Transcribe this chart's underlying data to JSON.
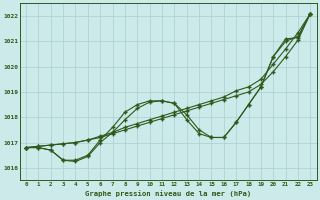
{
  "title": "Graphe pression niveau de la mer (hPa)",
  "bg_color": "#cceaea",
  "grid_color": "#aacece",
  "line_color": "#2d5a1b",
  "x_labels": [
    "0",
    "1",
    "2",
    "3",
    "4",
    "5",
    "6",
    "7",
    "8",
    "9",
    "10",
    "11",
    "12",
    "13",
    "14",
    "15",
    "16",
    "17",
    "18",
    "19",
    "20",
    "21",
    "22",
    "23"
  ],
  "ylim": [
    1015.5,
    1022.5
  ],
  "yticks": [
    1016,
    1017,
    1018,
    1019,
    1020,
    1021,
    1022
  ],
  "series_wavy": [
    1016.8,
    1016.8,
    1016.7,
    1016.3,
    1016.3,
    1016.5,
    1017.1,
    1017.6,
    1018.2,
    1018.5,
    1018.65,
    1018.65,
    1018.55,
    1018.1,
    1017.5,
    1017.2,
    1017.2,
    1017.8,
    1018.5,
    1019.2,
    1020.4,
    1021.1,
    1021.15,
    1022.1
  ],
  "series_wavy2": [
    1016.8,
    1016.8,
    1016.7,
    1016.3,
    1016.25,
    1016.45,
    1017.0,
    1017.4,
    1017.9,
    1018.35,
    1018.6,
    1018.65,
    1018.55,
    1017.9,
    1017.35,
    1017.2,
    1017.2,
    1017.8,
    1018.5,
    1019.2,
    1020.4,
    1021.0,
    1021.2,
    1022.1
  ],
  "series_linear1": [
    1016.8,
    1016.85,
    1016.9,
    1016.95,
    1017.0,
    1017.1,
    1017.2,
    1017.35,
    1017.5,
    1017.65,
    1017.8,
    1017.95,
    1018.1,
    1018.25,
    1018.4,
    1018.55,
    1018.7,
    1018.85,
    1019.0,
    1019.3,
    1019.8,
    1020.4,
    1021.05,
    1022.1
  ],
  "series_linear2": [
    1016.8,
    1016.85,
    1016.9,
    1016.95,
    1017.0,
    1017.1,
    1017.25,
    1017.4,
    1017.6,
    1017.75,
    1017.9,
    1018.05,
    1018.2,
    1018.35,
    1018.5,
    1018.65,
    1018.8,
    1019.05,
    1019.2,
    1019.5,
    1020.1,
    1020.7,
    1021.35,
    1022.1
  ]
}
